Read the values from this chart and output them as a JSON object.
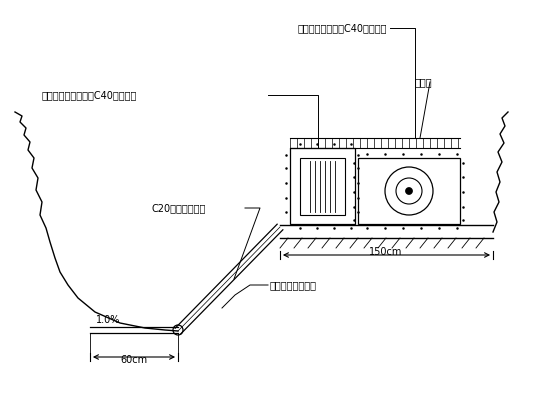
{
  "bg_color": "#ffffff",
  "line_color": "#000000",
  "fig_width": 5.6,
  "fig_height": 4.2,
  "dpi": 100,
  "labels": {
    "steel_wire": "钢丝位移计测头及C40砼保护墩",
    "water_pipe_head": "水管式沉降仪测头及C40砼保护墩",
    "rebar_net": "钢筋网",
    "c20_slab": "C20混凝土预制板",
    "water_pipe_line": "水管式沉降仪管线",
    "slope_1pct": "1.0%",
    "dim_60": "60cm",
    "dim_150": "150cm"
  },
  "font_size": 7.0
}
